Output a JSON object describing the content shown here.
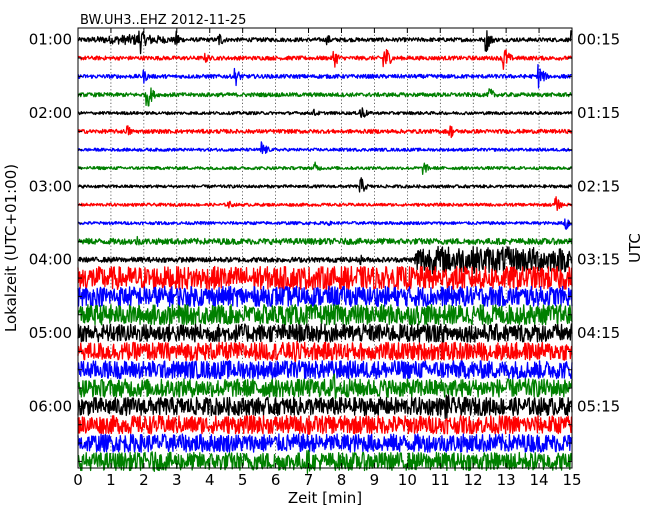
{
  "chart_data": {
    "type": "line",
    "title": "BW.UH3..EHZ 2012-11-25",
    "xlabel": "Zeit  [min]",
    "ylabel_left": "Lokalzeit (UTC+01:00)",
    "ylabel_right": "UTC",
    "xlim": [
      0,
      15
    ],
    "x_ticks": [
      "0",
      "1",
      "2",
      "3",
      "4",
      "5",
      "6",
      "7",
      "8",
      "9",
      "10",
      "11",
      "12",
      "13",
      "14",
      "15"
    ],
    "grid": true,
    "row_count": 24,
    "left_time_labels": [
      {
        "row": 0,
        "label": "01:00"
      },
      {
        "row": 4,
        "label": "02:00"
      },
      {
        "row": 8,
        "label": "03:00"
      },
      {
        "row": 12,
        "label": "04:00"
      },
      {
        "row": 16,
        "label": "05:00"
      },
      {
        "row": 20,
        "label": "06:00"
      }
    ],
    "right_time_labels": [
      {
        "row": 0,
        "label": "00:15"
      },
      {
        "row": 4,
        "label": "01:15"
      },
      {
        "row": 8,
        "label": "02:15"
      },
      {
        "row": 12,
        "label": "03:15"
      },
      {
        "row": 16,
        "label": "04:15"
      },
      {
        "row": 20,
        "label": "05:15"
      }
    ],
    "trace_colors": [
      "#000000",
      "#ff0000",
      "#0000ff",
      "#008000"
    ],
    "traces": [
      {
        "row": 0,
        "color": "#000000",
        "base": 0.18,
        "level": [
          [
            0,
            0.2
          ],
          [
            2.0,
            0.6
          ],
          [
            3.0,
            0.2
          ],
          [
            15,
            0.2
          ]
        ],
        "spikes": [
          [
            1.9,
            1.4
          ],
          [
            3.0,
            0.9
          ],
          [
            4.3,
            0.8
          ],
          [
            7.6,
            0.5
          ],
          [
            12.4,
            1.3
          ],
          [
            15.0,
            0.9
          ]
        ]
      },
      {
        "row": 1,
        "color": "#ff0000",
        "base": 0.18,
        "level": [
          [
            0,
            0.2
          ],
          [
            15,
            0.2
          ]
        ],
        "spikes": [
          [
            3.9,
            0.5
          ],
          [
            7.8,
            0.9
          ],
          [
            9.3,
            1.8
          ],
          [
            12.9,
            1.8
          ]
        ]
      },
      {
        "row": 2,
        "color": "#0000ff",
        "base": 0.18,
        "level": [
          [
            0,
            0.2
          ],
          [
            15,
            0.2
          ]
        ],
        "spikes": [
          [
            2.0,
            0.7
          ],
          [
            4.8,
            0.9
          ],
          [
            14.0,
            1.4
          ]
        ]
      },
      {
        "row": 3,
        "color": "#008000",
        "base": 0.18,
        "level": [
          [
            0,
            0.2
          ],
          [
            15,
            0.2
          ]
        ],
        "spikes": [
          [
            2.1,
            1.6
          ],
          [
            12.5,
            0.8
          ]
        ]
      },
      {
        "row": 4,
        "color": "#000000",
        "base": 0.16,
        "level": [
          [
            0,
            0.15
          ],
          [
            15,
            0.15
          ]
        ],
        "spikes": [
          [
            7.2,
            0.4
          ],
          [
            8.6,
            0.9
          ]
        ]
      },
      {
        "row": 5,
        "color": "#ff0000",
        "base": 0.18,
        "level": [
          [
            0,
            0.2
          ],
          [
            15,
            0.2
          ]
        ],
        "spikes": [
          [
            1.5,
            0.7
          ],
          [
            11.3,
            0.8
          ]
        ]
      },
      {
        "row": 6,
        "color": "#0000ff",
        "base": 0.16,
        "level": [
          [
            0,
            0.15
          ],
          [
            15,
            0.15
          ]
        ],
        "spikes": [
          [
            5.6,
            0.9
          ]
        ]
      },
      {
        "row": 7,
        "color": "#008000",
        "base": 0.16,
        "level": [
          [
            0,
            0.15
          ],
          [
            15,
            0.15
          ]
        ],
        "spikes": [
          [
            7.2,
            0.6
          ],
          [
            10.5,
            0.7
          ]
        ]
      },
      {
        "row": 8,
        "color": "#000000",
        "base": 0.16,
        "level": [
          [
            0,
            0.15
          ],
          [
            15,
            0.15
          ]
        ],
        "spikes": [
          [
            8.6,
            0.9
          ]
        ]
      },
      {
        "row": 9,
        "color": "#ff0000",
        "base": 0.16,
        "level": [
          [
            0,
            0.15
          ],
          [
            15,
            0.15
          ]
        ],
        "spikes": [
          [
            4.6,
            0.4
          ],
          [
            14.5,
            0.9
          ]
        ]
      },
      {
        "row": 10,
        "color": "#0000ff",
        "base": 0.16,
        "level": [
          [
            0,
            0.15
          ],
          [
            15,
            0.15
          ]
        ],
        "spikes": [
          [
            7.6,
            0.3
          ],
          [
            14.8,
            1.1
          ]
        ]
      },
      {
        "row": 11,
        "color": "#008000",
        "base": 0.22,
        "level": [
          [
            0,
            0.3
          ],
          [
            15,
            0.3
          ]
        ],
        "spikes": [
          [
            1.8,
            0.6
          ]
        ]
      },
      {
        "row": 12,
        "color": "#000000",
        "base": 0.25,
        "level": [
          [
            0,
            0.25
          ],
          [
            10.2,
            0.25
          ],
          [
            10.3,
            1.4
          ],
          [
            15,
            1.2
          ]
        ],
        "spikes": [
          [
            8.6,
            0.5
          ]
        ]
      },
      {
        "row": 13,
        "color": "#ff0000",
        "base": 1.15,
        "level": [
          [
            0,
            1.15
          ],
          [
            15,
            1.15
          ]
        ],
        "spikes": [
          [
            8.5,
            1.2
          ]
        ]
      },
      {
        "row": 14,
        "color": "#0000ff",
        "base": 1.0,
        "level": [
          [
            0,
            1.0
          ],
          [
            15,
            1.0
          ]
        ],
        "spikes": [
          [
            8.5,
            1.0
          ]
        ]
      },
      {
        "row": 15,
        "color": "#008000",
        "base": 1.0,
        "level": [
          [
            0,
            1.0
          ],
          [
            15,
            1.0
          ]
        ],
        "spikes": []
      },
      {
        "row": 16,
        "color": "#000000",
        "base": 0.9,
        "level": [
          [
            0,
            0.9
          ],
          [
            15,
            0.9
          ]
        ],
        "spikes": []
      },
      {
        "row": 17,
        "color": "#ff0000",
        "base": 0.9,
        "level": [
          [
            0,
            0.9
          ],
          [
            15,
            0.9
          ]
        ],
        "spikes": [
          [
            6.6,
            1.4
          ]
        ]
      },
      {
        "row": 18,
        "color": "#0000ff",
        "base": 0.9,
        "level": [
          [
            0,
            0.9
          ],
          [
            15,
            0.9
          ]
        ],
        "spikes": []
      },
      {
        "row": 19,
        "color": "#008000",
        "base": 0.9,
        "level": [
          [
            0,
            0.9
          ],
          [
            15,
            0.9
          ]
        ],
        "spikes": [
          [
            7.8,
            1.6
          ]
        ]
      },
      {
        "row": 20,
        "color": "#000000",
        "base": 0.9,
        "level": [
          [
            0,
            0.9
          ],
          [
            15,
            0.9
          ]
        ],
        "spikes": [
          [
            9.2,
            0.6
          ],
          [
            11.2,
            1.6
          ]
        ]
      },
      {
        "row": 21,
        "color": "#ff0000",
        "base": 0.9,
        "level": [
          [
            0,
            0.9
          ],
          [
            15,
            0.9
          ]
        ],
        "spikes": [
          [
            7.0,
            1.5
          ]
        ]
      },
      {
        "row": 22,
        "color": "#0000ff",
        "base": 0.9,
        "level": [
          [
            0,
            0.9
          ],
          [
            15,
            0.9
          ]
        ],
        "spikes": []
      },
      {
        "row": 23,
        "color": "#008000",
        "base": 0.9,
        "level": [
          [
            0,
            0.9
          ],
          [
            15,
            0.9
          ]
        ],
        "spikes": [
          [
            2.3,
            1.2
          ],
          [
            7.0,
            1.2
          ]
        ]
      }
    ]
  }
}
